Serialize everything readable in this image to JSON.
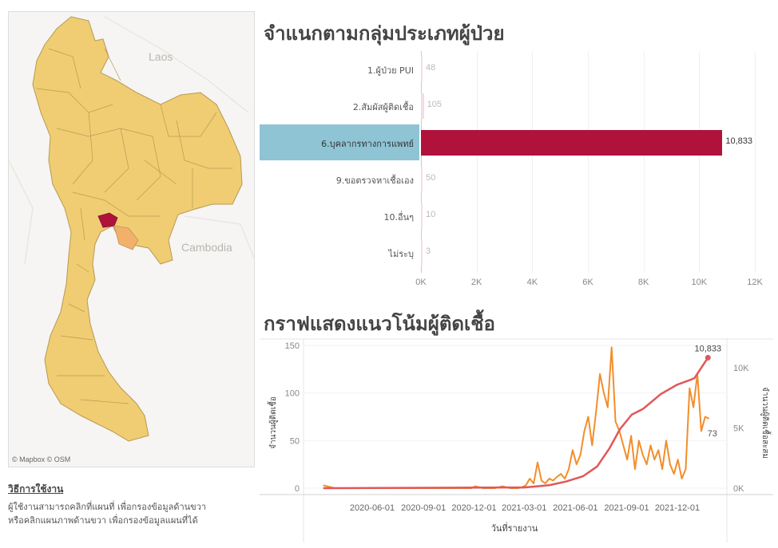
{
  "map": {
    "labels": {
      "laos": "Laos",
      "cambodia": "Cambodia"
    },
    "attribution": "© Mapbox  © OSM",
    "colors": {
      "province": "#f0cd72",
      "border": "#b69a55",
      "selected": "#b0123c",
      "neighbor": "#f2b06a",
      "water": "#e8e6e2"
    }
  },
  "instructions": {
    "title": "วิธีการใช้งาน",
    "line1": "ผู้ใช้งานสามารถคลิกที่แผนที่ เพื่อกรองข้อมูลด้านขวา",
    "line2": "หรือคลิกแผนภาพด้านขวา เพื่อกรองข้อมูลแผนที่ได้"
  },
  "chart_data": [
    {
      "type": "bar",
      "title": "จำแนกตามกลุ่มประเภทผู้ป่วย",
      "categories": [
        "1.ผู้ป่วย PUI",
        "2.สัมผัสผู้ติดเชื้อ",
        "6.บุคลากรทางการแพทย์",
        "9.ขอตรวจหาเชื้อเอง",
        "10.อื่นๆ",
        "ไม่ระบุ"
      ],
      "values": [
        48,
        105,
        10833,
        50,
        10,
        3
      ],
      "value_labels": [
        "48",
        "105",
        "10,833",
        "50",
        "10",
        "3"
      ],
      "selected_index": 2,
      "xlim": [
        0,
        12000
      ],
      "xticks": [
        0,
        2000,
        4000,
        6000,
        8000,
        10000,
        12000
      ],
      "xtick_labels": [
        "0K",
        "2K",
        "4K",
        "6K",
        "8K",
        "10K",
        "12K"
      ],
      "colors": {
        "selected": "#b0123c",
        "dim": "#f3dde2",
        "highlight": "#8ec4d4"
      }
    },
    {
      "type": "line",
      "title": "กราฟแสดงแนวโน้มผู้ติดเชื้อ",
      "xlabel": "วันที่รายงาน",
      "ylabel": "จำนวนผู้ติดเชื้อ",
      "y2label": "จำนวนผู้ติดเชื้อสะสม",
      "ylim": [
        0,
        150
      ],
      "yticks": [
        0,
        50,
        100,
        150
      ],
      "y2lim": [
        0,
        12000
      ],
      "y2ticks": [
        0,
        5000,
        10000
      ],
      "y2tick_labels": [
        "0K",
        "5K",
        "10K"
      ],
      "xtick_labels": [
        "2020-06-01",
        "2020-09-01",
        "2020-12-01",
        "2021-03-01",
        "2021-06-01",
        "2021-09-01",
        "2021-12-01"
      ],
      "series": [
        {
          "name": "daily",
          "color": "#f28e2b",
          "start": "2020-03-05",
          "step_days": 7,
          "values": [
            3,
            2,
            1,
            0,
            0,
            0,
            0,
            0,
            0,
            0,
            0,
            0,
            0,
            0,
            0,
            0,
            0,
            0,
            0,
            0,
            0,
            0,
            0,
            0,
            0,
            0,
            0,
            0,
            0,
            0,
            0,
            0,
            0,
            0,
            0,
            0,
            0,
            0,
            0,
            2,
            1,
            0,
            0,
            0,
            0,
            1,
            2,
            1,
            0,
            0,
            0,
            1,
            3,
            10,
            5,
            27,
            8,
            5,
            10,
            8,
            12,
            15,
            10,
            20,
            40,
            25,
            35,
            60,
            75,
            45,
            80,
            120,
            100,
            85,
            148,
            70,
            60,
            45,
            30,
            55,
            20,
            50,
            35,
            25,
            45,
            30,
            40,
            20,
            50,
            25,
            15,
            30,
            10,
            20,
            105,
            85,
            120,
            60,
            75,
            73
          ],
          "end_label": "73"
        },
        {
          "name": "cumulative",
          "color": "#e15759",
          "points": [
            [
              "2020-03-05",
              0
            ],
            [
              "2021-03-01",
              60
            ],
            [
              "2021-04-15",
              250
            ],
            [
              "2021-05-15",
              550
            ],
            [
              "2021-06-15",
              1000
            ],
            [
              "2021-07-10",
              1800
            ],
            [
              "2021-08-01",
              3300
            ],
            [
              "2021-08-20",
              4900
            ],
            [
              "2021-09-10",
              6100
            ],
            [
              "2021-10-01",
              6600
            ],
            [
              "2021-11-01",
              7800
            ],
            [
              "2021-12-01",
              8600
            ],
            [
              "2021-12-25",
              9000
            ],
            [
              "2022-01-01",
              9150
            ],
            [
              "2022-01-25",
              10833
            ]
          ],
          "end_label": "10,833"
        }
      ]
    }
  ]
}
